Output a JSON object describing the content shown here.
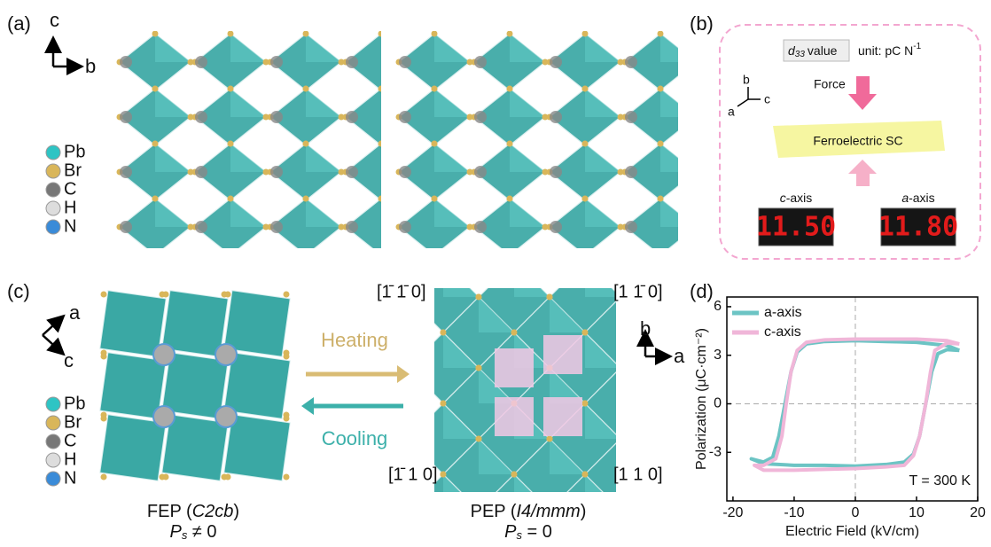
{
  "panel_a": {
    "label": "(a)",
    "axis_up": "c",
    "axis_right": "b",
    "legend": [
      "Pb",
      "Br",
      "C",
      "H",
      "N"
    ]
  },
  "panel_b": {
    "label": "(b)",
    "d33_symbol": "d",
    "d33_sub": "33",
    "d33_text": "value",
    "unit": "unit: pC N",
    "unit_sup": "-1",
    "force": "Force",
    "axes": [
      "b",
      "a",
      "c"
    ],
    "crystal": "Ferroelectric SC",
    "readouts": [
      {
        "axis": "c",
        "suffix": "-axis",
        "value": "11.50"
      },
      {
        "axis": "a",
        "suffix": "-axis",
        "value": "11.80"
      }
    ]
  },
  "panel_c": {
    "label": "(c)",
    "axis_up": "a",
    "axis_down": "c",
    "legend": [
      "Pb",
      "Br",
      "C",
      "H",
      "N"
    ],
    "heating": "Heating",
    "cooling": "Cooling",
    "directions": [
      "[1̄ 1̄ 0]",
      "[1 1̄ 0]",
      "[1̄ 1 0]",
      "[1 1 0]"
    ],
    "axis_up2": "b",
    "axis_right2": "a",
    "fep": [
      "FEP (",
      "C2cb",
      ")"
    ],
    "fep_ps": [
      "P",
      "s",
      " ≠ 0"
    ],
    "pep": [
      "PEP (",
      "I4/mmm",
      ")"
    ],
    "pep_ps": [
      "P",
      "s",
      " = 0"
    ]
  },
  "chart_data": {
    "type": "line",
    "label": "(d)",
    "xlabel": "Electric Field (kV/cm)",
    "ylabel": "Polarization (μC·cm⁻²)",
    "annotation": "T = 300 K",
    "xlim": [
      -21,
      20
    ],
    "ylim": [
      -6,
      6.6
    ],
    "xticks": [
      -20,
      -10,
      0,
      10,
      20
    ],
    "yticks": [
      -3,
      0,
      3,
      6
    ],
    "series": [
      {
        "name": "a-axis",
        "color": "#6cc4c4",
        "x": [
          17,
          15,
          10,
          5,
          0,
          -5,
          -8,
          -9.5,
          -10.5,
          -11.5,
          -12.5,
          -13.5,
          -15,
          -17,
          -15,
          -10,
          -5,
          0,
          5,
          8,
          9.5,
          10.5,
          11.5,
          12.5,
          13.5,
          15,
          17
        ],
        "values": [
          3.3,
          3.6,
          3.8,
          3.85,
          3.9,
          3.85,
          3.7,
          3.2,
          2,
          0,
          -2,
          -3.3,
          -3.6,
          -3.4,
          -3.7,
          -3.8,
          -3.8,
          -3.85,
          -3.75,
          -3.6,
          -3.1,
          -2,
          0,
          2,
          3.1,
          3.35,
          3.3
        ]
      },
      {
        "name": "c-axis",
        "color": "#f0b6d8",
        "x": [
          17,
          15,
          10,
          0,
          -5,
          -8,
          -9.5,
          -10.5,
          -11.3,
          -12,
          -13,
          -15,
          -16.5,
          -15,
          -10,
          -5,
          0,
          5,
          8,
          9.5,
          10.5,
          11.5,
          12.3,
          13,
          15,
          17
        ],
        "values": [
          3.7,
          3.9,
          4,
          4,
          3.95,
          3.8,
          3.3,
          2,
          0,
          -2,
          -3.4,
          -3.8,
          -3.8,
          -4.1,
          -4.1,
          -4.05,
          -4,
          -3.9,
          -3.8,
          -3.2,
          -2,
          0,
          2,
          3.3,
          3.75,
          3.7
        ]
      }
    ]
  }
}
